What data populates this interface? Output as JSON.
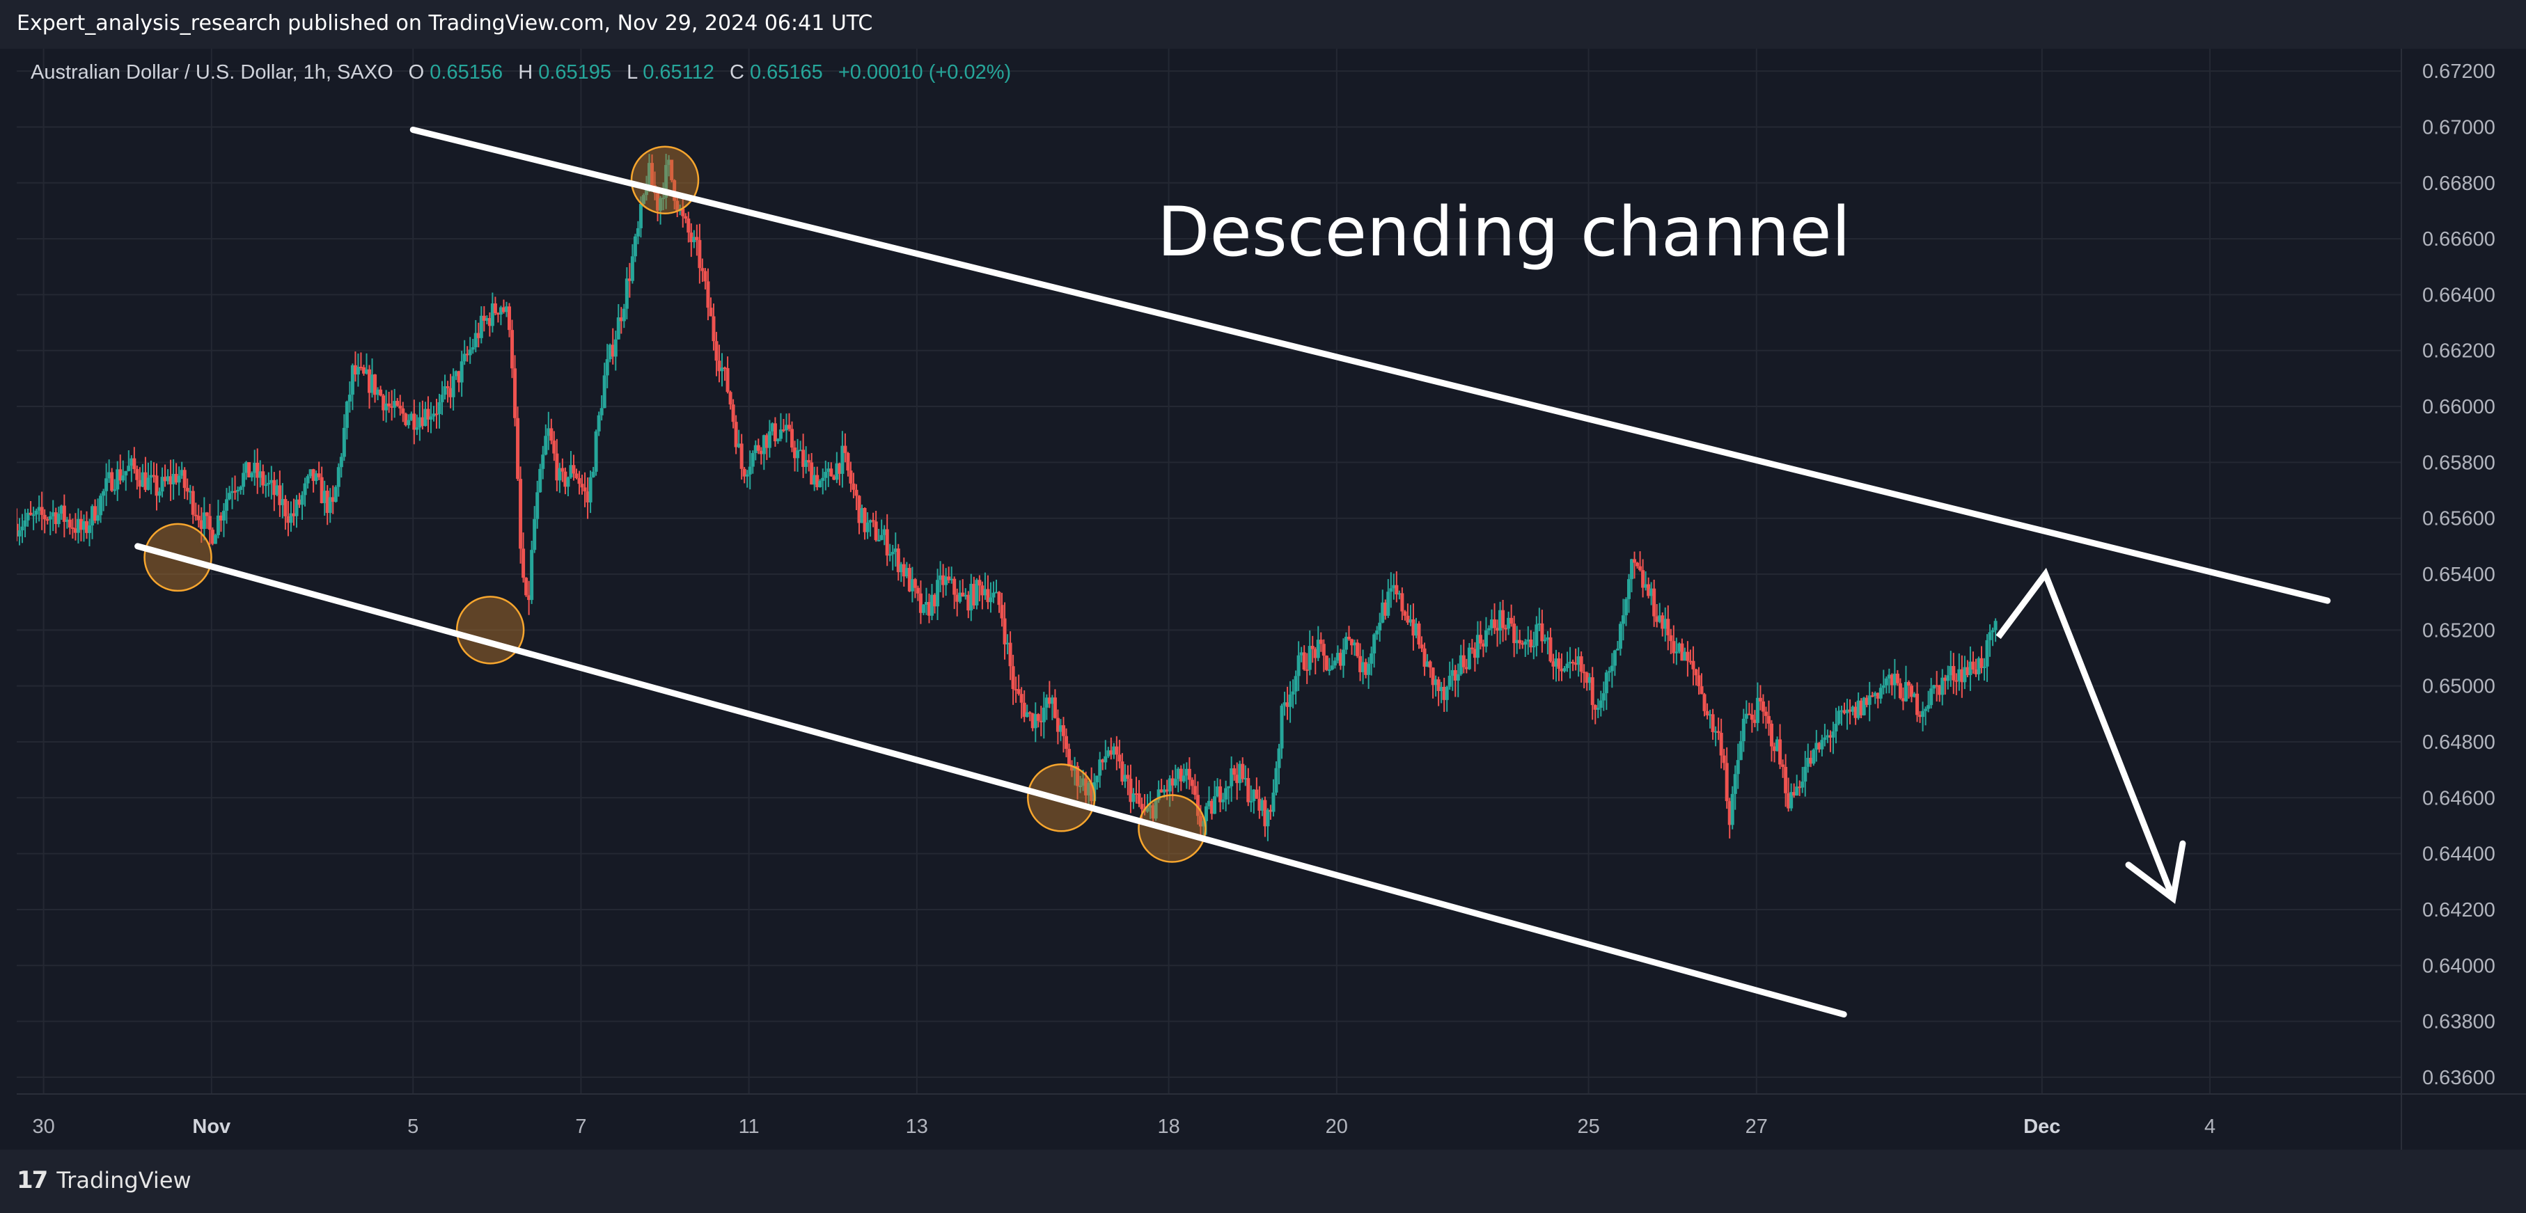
{
  "header": {
    "publish_text": "Expert_analysis_research published on TradingView.com, Nov 29, 2024 06:41 UTC"
  },
  "legend": {
    "symbol": "Australian Dollar / U.S. Dollar, 1h, SAXO",
    "o_label": "O",
    "o_value": "0.65156",
    "h_label": "H",
    "h_value": "0.65195",
    "l_label": "L",
    "l_value": "0.65112",
    "c_label": "C",
    "c_value": "0.65165",
    "change": "+0.00010 (+0.02%)"
  },
  "annotation": {
    "title": "Descending channel"
  },
  "footer": {
    "brand": "TradingView"
  },
  "colors": {
    "background": "#161a25",
    "bar_bg": "#1e222d",
    "grid": "#242833",
    "up": "#26a69a",
    "down": "#ef5350",
    "axis_text": "#b2b5be",
    "highlight_fill": "#b8752a",
    "highlight_stroke": "#f7a62e",
    "drawing": "#ffffff"
  },
  "chart_data": {
    "type": "candlestick",
    "symbol": "AUDUSD",
    "interval": "1h",
    "y_axis": {
      "ylim": [
        0.6354,
        0.6728
      ],
      "ticks": [
        "0.67200",
        "0.67000",
        "0.66800",
        "0.66600",
        "0.66400",
        "0.66200",
        "0.66000",
        "0.65800",
        "0.65600",
        "0.65400",
        "0.65200",
        "0.65000",
        "0.64800",
        "0.64600",
        "0.64400",
        "0.64200",
        "0.64000",
        "0.63800",
        "0.63600"
      ]
    },
    "x_axis": {
      "range_days": [
        -0.9,
        34.6
      ],
      "ticks": [
        {
          "label": "30",
          "day": -0.5,
          "bold": false
        },
        {
          "label": "Nov",
          "day": 2,
          "bold": true
        },
        {
          "label": "5",
          "day": 5,
          "bold": false
        },
        {
          "label": "7",
          "day": 7.5,
          "bold": false
        },
        {
          "label": "11",
          "day": 10,
          "bold": false
        },
        {
          "label": "13",
          "day": 12.5,
          "bold": false
        },
        {
          "label": "18",
          "day": 16.25,
          "bold": false
        },
        {
          "label": "20",
          "day": 18.75,
          "bold": false
        },
        {
          "label": "25",
          "day": 22.5,
          "bold": false
        },
        {
          "label": "27",
          "day": 25,
          "bold": false
        },
        {
          "label": "Dec",
          "day": 29.25,
          "bold": true
        },
        {
          "label": "4",
          "day": 31.75,
          "bold": false
        }
      ]
    },
    "price_path": [
      [
        -0.9,
        0.6558
      ],
      [
        -0.3,
        0.6562
      ],
      [
        0.1,
        0.6555
      ],
      [
        0.5,
        0.6574
      ],
      [
        0.8,
        0.6578
      ],
      [
        1.2,
        0.657
      ],
      [
        1.5,
        0.6576
      ],
      [
        1.8,
        0.6562
      ],
      [
        2.0,
        0.6554
      ],
      [
        2.3,
        0.6572
      ],
      [
        2.6,
        0.6577
      ],
      [
        2.9,
        0.657
      ],
      [
        3.2,
        0.656
      ],
      [
        3.5,
        0.6575
      ],
      [
        3.8,
        0.6562
      ],
      [
        4.1,
        0.6612
      ],
      [
        4.4,
        0.6608
      ],
      [
        4.7,
        0.6598
      ],
      [
        5.0,
        0.6596
      ],
      [
        5.4,
        0.66
      ],
      [
        5.7,
        0.6612
      ],
      [
        6.0,
        0.6628
      ],
      [
        6.3,
        0.6637
      ],
      [
        6.45,
        0.663
      ],
      [
        6.6,
        0.6548
      ],
      [
        6.7,
        0.6524
      ],
      [
        6.8,
        0.6558
      ],
      [
        7.0,
        0.6592
      ],
      [
        7.2,
        0.6572
      ],
      [
        7.4,
        0.6578
      ],
      [
        7.6,
        0.6566
      ],
      [
        7.85,
        0.661
      ],
      [
        8.1,
        0.6634
      ],
      [
        8.35,
        0.6662
      ],
      [
        8.5,
        0.6684
      ],
      [
        8.65,
        0.6672
      ],
      [
        8.8,
        0.6686
      ],
      [
        9.0,
        0.6667
      ],
      [
        9.25,
        0.6654
      ],
      [
        9.5,
        0.6622
      ],
      [
        9.7,
        0.6605
      ],
      [
        9.9,
        0.6577
      ],
      [
        10.2,
        0.6588
      ],
      [
        10.5,
        0.6592
      ],
      [
        10.8,
        0.658
      ],
      [
        11.1,
        0.6572
      ],
      [
        11.4,
        0.6582
      ],
      [
        11.7,
        0.6558
      ],
      [
        12.0,
        0.6553
      ],
      [
        12.3,
        0.6542
      ],
      [
        12.6,
        0.6525
      ],
      [
        12.9,
        0.6538
      ],
      [
        13.2,
        0.653
      ],
      [
        13.5,
        0.6536
      ],
      [
        13.75,
        0.6528
      ],
      [
        13.95,
        0.6498
      ],
      [
        14.2,
        0.6488
      ],
      [
        14.5,
        0.6494
      ],
      [
        14.8,
        0.647
      ],
      [
        15.1,
        0.6462
      ],
      [
        15.35,
        0.6478
      ],
      [
        15.6,
        0.6466
      ],
      [
        15.9,
        0.6453
      ],
      [
        16.2,
        0.6463
      ],
      [
        16.5,
        0.6468
      ],
      [
        16.75,
        0.645
      ],
      [
        17.0,
        0.6462
      ],
      [
        17.25,
        0.647
      ],
      [
        17.5,
        0.646
      ],
      [
        17.75,
        0.6452
      ],
      [
        17.95,
        0.6492
      ],
      [
        18.2,
        0.6508
      ],
      [
        18.45,
        0.6513
      ],
      [
        18.7,
        0.6505
      ],
      [
        18.95,
        0.652
      ],
      [
        19.15,
        0.6504
      ],
      [
        19.4,
        0.6526
      ],
      [
        19.6,
        0.6533
      ],
      [
        19.85,
        0.6524
      ],
      [
        20.1,
        0.6506
      ],
      [
        20.35,
        0.6495
      ],
      [
        20.6,
        0.6508
      ],
      [
        20.9,
        0.6517
      ],
      [
        21.2,
        0.6524
      ],
      [
        21.5,
        0.6513
      ],
      [
        21.8,
        0.652
      ],
      [
        22.1,
        0.6502
      ],
      [
        22.35,
        0.6507
      ],
      [
        22.6,
        0.6495
      ],
      [
        22.85,
        0.6505
      ],
      [
        23.05,
        0.6527
      ],
      [
        23.15,
        0.6543
      ],
      [
        23.35,
        0.6535
      ],
      [
        23.6,
        0.6522
      ],
      [
        23.85,
        0.6512
      ],
      [
        24.1,
        0.6504
      ],
      [
        24.3,
        0.6488
      ],
      [
        24.5,
        0.6478
      ],
      [
        24.6,
        0.645
      ],
      [
        24.8,
        0.6487
      ],
      [
        25.05,
        0.6492
      ],
      [
        25.3,
        0.6478
      ],
      [
        25.5,
        0.6458
      ],
      [
        25.7,
        0.647
      ],
      [
        25.95,
        0.6478
      ],
      [
        26.2,
        0.6487
      ],
      [
        26.45,
        0.649
      ],
      [
        26.7,
        0.6496
      ],
      [
        26.95,
        0.6502
      ],
      [
        27.2,
        0.6498
      ],
      [
        27.45,
        0.6492
      ],
      [
        27.7,
        0.65
      ],
      [
        27.95,
        0.6505
      ],
      [
        28.2,
        0.6506
      ],
      [
        28.4,
        0.651
      ],
      [
        28.55,
        0.652
      ],
      [
        28.6,
        0.65165
      ]
    ],
    "channel": {
      "upper": [
        [
          5.0,
          0.6699
        ],
        [
          33.5,
          0.65305
        ]
      ],
      "lower": [
        [
          0.9,
          0.655
        ],
        [
          26.3,
          0.63825
        ]
      ]
    },
    "projection": [
      [
        28.6,
        0.65175
      ],
      [
        29.3,
        0.654
      ],
      [
        31.2,
        0.6424
      ],
      [
        31.6,
        0.6441
      ]
    ],
    "touch_points": [
      [
        1.5,
        0.6546
      ],
      [
        6.15,
        0.652
      ],
      [
        8.75,
        0.6681
      ],
      [
        14.65,
        0.646
      ],
      [
        16.3,
        0.6449
      ]
    ]
  }
}
